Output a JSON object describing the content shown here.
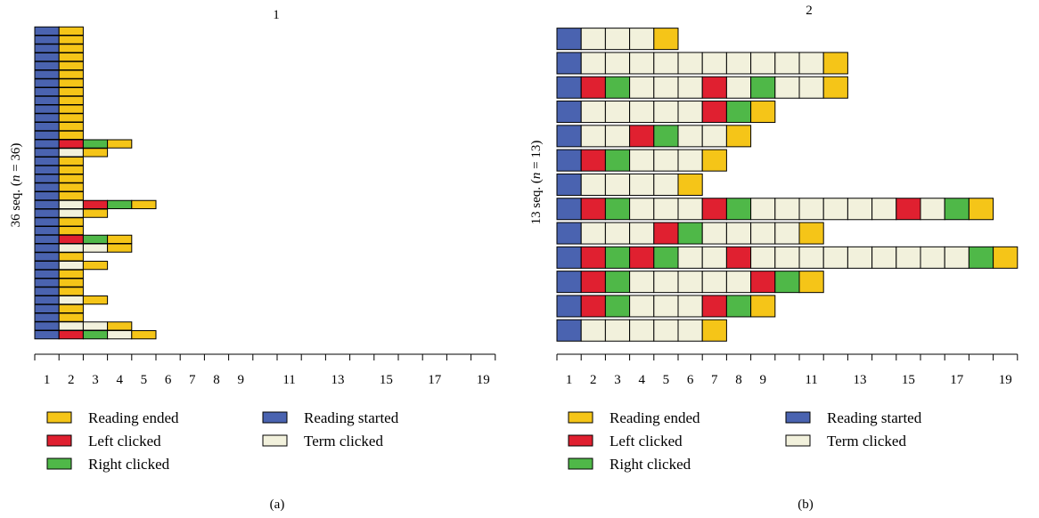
{
  "colors": {
    "Reading ended": "#f5c518",
    "Reading started": "#4a63b0",
    "Left clicked": "#e02030",
    "Term clicked": "#f2f1dc",
    "Right clicked": "#4fb848"
  },
  "chart_data": [
    {
      "type": "sequence_index",
      "title": "1",
      "ylabel_prefix": "36 seq. (",
      "ylabel_var": "n",
      "ylabel_suffix": " = 36)",
      "panel_label": "(a)",
      "x_ticks": [
        1,
        2,
        3,
        4,
        5,
        6,
        7,
        8,
        9,
        11,
        13,
        15,
        17,
        19
      ],
      "xlim": [
        1,
        20
      ],
      "legend": [
        "Reading ended",
        "Reading started",
        "Left clicked",
        "Term clicked",
        "Right clicked"
      ],
      "sequences": [
        [
          "Reading started",
          "Reading ended"
        ],
        [
          "Reading started",
          "Reading ended"
        ],
        [
          "Reading started",
          "Reading ended"
        ],
        [
          "Reading started",
          "Reading ended"
        ],
        [
          "Reading started",
          "Reading ended"
        ],
        [
          "Reading started",
          "Reading ended"
        ],
        [
          "Reading started",
          "Reading ended"
        ],
        [
          "Reading started",
          "Reading ended"
        ],
        [
          "Reading started",
          "Reading ended"
        ],
        [
          "Reading started",
          "Reading ended"
        ],
        [
          "Reading started",
          "Reading ended"
        ],
        [
          "Reading started",
          "Reading ended"
        ],
        [
          "Reading started",
          "Reading ended"
        ],
        [
          "Reading started",
          "Left clicked",
          "Right clicked",
          "Reading ended"
        ],
        [
          "Reading started",
          "Term clicked",
          "Reading ended"
        ],
        [
          "Reading started",
          "Reading ended"
        ],
        [
          "Reading started",
          "Reading ended"
        ],
        [
          "Reading started",
          "Reading ended"
        ],
        [
          "Reading started",
          "Reading ended"
        ],
        [
          "Reading started",
          "Reading ended"
        ],
        [
          "Reading started",
          "Term clicked",
          "Left clicked",
          "Right clicked",
          "Reading ended"
        ],
        [
          "Reading started",
          "Term clicked",
          "Reading ended"
        ],
        [
          "Reading started",
          "Reading ended"
        ],
        [
          "Reading started",
          "Reading ended"
        ],
        [
          "Reading started",
          "Left clicked",
          "Right clicked",
          "Reading ended"
        ],
        [
          "Reading started",
          "Term clicked",
          "Term clicked",
          "Reading ended"
        ],
        [
          "Reading started",
          "Reading ended"
        ],
        [
          "Reading started",
          "Term clicked",
          "Reading ended"
        ],
        [
          "Reading started",
          "Reading ended"
        ],
        [
          "Reading started",
          "Reading ended"
        ],
        [
          "Reading started",
          "Reading ended"
        ],
        [
          "Reading started",
          "Term clicked",
          "Reading ended"
        ],
        [
          "Reading started",
          "Reading ended"
        ],
        [
          "Reading started",
          "Reading ended"
        ],
        [
          "Reading started",
          "Term clicked",
          "Term clicked",
          "Reading ended"
        ],
        [
          "Reading started",
          "Left clicked",
          "Right clicked",
          "Term clicked",
          "Reading ended"
        ]
      ]
    },
    {
      "type": "sequence_index",
      "title": "2",
      "ylabel_prefix": "13 seq. (",
      "ylabel_var": "n",
      "ylabel_suffix": " = 13)",
      "panel_label": "(b)",
      "x_ticks": [
        1,
        2,
        3,
        4,
        5,
        6,
        7,
        8,
        9,
        11,
        13,
        15,
        17,
        19
      ],
      "xlim": [
        1,
        20
      ],
      "legend": [
        "Reading ended",
        "Reading started",
        "Left clicked",
        "Term clicked",
        "Right clicked"
      ],
      "sequences": [
        [
          "Reading started",
          "Term clicked",
          "Term clicked",
          "Term clicked",
          "Reading ended"
        ],
        [
          "Reading started",
          "Term clicked",
          "Term clicked",
          "Term clicked",
          "Term clicked",
          "Term clicked",
          "Term clicked",
          "Term clicked",
          "Term clicked",
          "Term clicked",
          "Term clicked",
          "Reading ended"
        ],
        [
          "Reading started",
          "Left clicked",
          "Right clicked",
          "Term clicked",
          "Term clicked",
          "Term clicked",
          "Left clicked",
          "Term clicked",
          "Right clicked",
          "Term clicked",
          "Term clicked",
          "Reading ended"
        ],
        [
          "Reading started",
          "Term clicked",
          "Term clicked",
          "Term clicked",
          "Term clicked",
          "Term clicked",
          "Left clicked",
          "Right clicked",
          "Reading ended"
        ],
        [
          "Reading started",
          "Term clicked",
          "Term clicked",
          "Left clicked",
          "Right clicked",
          "Term clicked",
          "Term clicked",
          "Reading ended"
        ],
        [
          "Reading started",
          "Left clicked",
          "Right clicked",
          "Term clicked",
          "Term clicked",
          "Term clicked",
          "Reading ended"
        ],
        [
          "Reading started",
          "Term clicked",
          "Term clicked",
          "Term clicked",
          "Term clicked",
          "Reading ended"
        ],
        [
          "Reading started",
          "Left clicked",
          "Right clicked",
          "Term clicked",
          "Term clicked",
          "Term clicked",
          "Left clicked",
          "Right clicked",
          "Term clicked",
          "Term clicked",
          "Term clicked",
          "Term clicked",
          "Term clicked",
          "Term clicked",
          "Left clicked",
          "Term clicked",
          "Right clicked",
          "Reading ended"
        ],
        [
          "Reading started",
          "Term clicked",
          "Term clicked",
          "Term clicked",
          "Left clicked",
          "Right clicked",
          "Term clicked",
          "Term clicked",
          "Term clicked",
          "Term clicked",
          "Reading ended"
        ],
        [
          "Reading started",
          "Left clicked",
          "Right clicked",
          "Left clicked",
          "Right clicked",
          "Term clicked",
          "Term clicked",
          "Left clicked",
          "Term clicked",
          "Term clicked",
          "Term clicked",
          "Term clicked",
          "Term clicked",
          "Term clicked",
          "Term clicked",
          "Term clicked",
          "Term clicked",
          "Right clicked",
          "Reading ended"
        ],
        [
          "Reading started",
          "Left clicked",
          "Right clicked",
          "Term clicked",
          "Term clicked",
          "Term clicked",
          "Term clicked",
          "Term clicked",
          "Left clicked",
          "Right clicked",
          "Reading ended"
        ],
        [
          "Reading started",
          "Left clicked",
          "Right clicked",
          "Term clicked",
          "Term clicked",
          "Term clicked",
          "Left clicked",
          "Right clicked",
          "Reading ended"
        ],
        [
          "Reading started",
          "Term clicked",
          "Term clicked",
          "Term clicked",
          "Term clicked",
          "Term clicked",
          "Reading ended"
        ]
      ]
    }
  ]
}
